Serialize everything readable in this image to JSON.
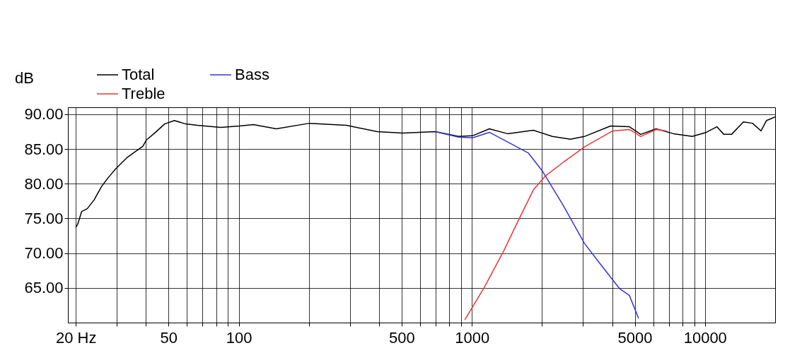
{
  "chart_data": {
    "type": "line",
    "ylabel": "dB",
    "log": "x",
    "grid": true,
    "legend": "top left",
    "line_style": "solid",
    "marker": "none",
    "xlim": [
      18.5,
      20000
    ],
    "ylim": [
      60,
      91
    ],
    "xticks": [
      {
        "value": 20,
        "label": "20 Hz"
      },
      {
        "value": 30,
        "label": null
      },
      {
        "value": 40,
        "label": null
      },
      50,
      {
        "value": 60,
        "label": null
      },
      {
        "value": 70,
        "label": null
      },
      {
        "value": 80,
        "label": null
      },
      {
        "value": 90,
        "label": null
      },
      100,
      {
        "value": 200,
        "label": null
      },
      {
        "value": 300,
        "label": null
      },
      {
        "value": 400,
        "label": null
      },
      500,
      {
        "value": 600,
        "label": null
      },
      {
        "value": 700,
        "label": null
      },
      {
        "value": 800,
        "label": null
      },
      {
        "value": 900,
        "label": null
      },
      1000,
      {
        "value": 2000,
        "label": null
      },
      {
        "value": 3000,
        "label": null
      },
      {
        "value": 4000,
        "label": null
      },
      5000,
      {
        "value": 6000,
        "label": null
      },
      {
        "value": 7000,
        "label": null
      },
      {
        "value": 8000,
        "label": null
      },
      {
        "value": 9000,
        "label": null
      },
      10000
    ],
    "yticks": [
      {
        "value": 65,
        "label": "65.00"
      },
      {
        "value": 70,
        "label": "70.00"
      },
      {
        "value": 75,
        "label": "75.00"
      },
      {
        "value": 80,
        "label": "80.00"
      },
      {
        "value": 85,
        "label": "85.00"
      },
      {
        "value": 90,
        "label": "90.00"
      }
    ],
    "series": [
      {
        "name": "Total",
        "color": "#000000",
        "x": [
          20,
          20.4,
          21.2,
          22.4,
          24.0,
          25.8,
          27.6,
          29.6,
          33.3,
          38.8,
          40.2,
          44.0,
          48.1,
          53,
          59.2,
          66.5,
          83.6,
          100.7,
          115.6,
          145,
          201,
          290,
          393,
          505,
          698,
          877,
          1007,
          1189,
          1422,
          1836,
          2213,
          2650,
          3043,
          3933,
          4743,
          5300,
          6170,
          7330,
          8830,
          10140,
          11250,
          12050,
          13000,
          14620,
          16000,
          17400,
          18370,
          20000
        ],
        "values": [
          73.7,
          74.2,
          76.0,
          76.4,
          77.7,
          79.6,
          80.9,
          82.1,
          83.8,
          85.4,
          86.3,
          87.4,
          88.6,
          89.1,
          88.6,
          88.4,
          88.1,
          88.3,
          88.5,
          87.9,
          88.7,
          88.4,
          87.5,
          87.3,
          87.5,
          86.8,
          86.9,
          87.9,
          87.2,
          87.7,
          86.8,
          86.4,
          86.8,
          88.3,
          88.2,
          87.1,
          87.9,
          87.2,
          86.8,
          87.4,
          88.2,
          87.1,
          87.1,
          88.9,
          88.7,
          87.6,
          89.1,
          89.6
        ]
      },
      {
        "name": "Bass",
        "color": "#3333dd",
        "x": [
          698,
          877,
          1007,
          1189,
          1462,
          1750,
          2010,
          2472,
          3043,
          3490,
          4300,
          4743,
          5190
        ],
        "values": [
          87.5,
          86.7,
          86.6,
          87.4,
          85.8,
          84.4,
          81.8,
          76.8,
          71.4,
          68.8,
          64.9,
          63.9,
          60.6
        ]
      },
      {
        "name": "Treble",
        "color": "#ee3333",
        "x": [
          933,
          1132,
          1374,
          1567,
          1836,
          2065,
          2472,
          3043,
          4020,
          4743,
          5300,
          6170,
          6840
        ],
        "values": [
          60.4,
          65.1,
          70.4,
          74.4,
          79.1,
          81.1,
          83.1,
          85.3,
          87.6,
          87.8,
          86.8,
          87.8,
          87.6
        ]
      }
    ]
  }
}
